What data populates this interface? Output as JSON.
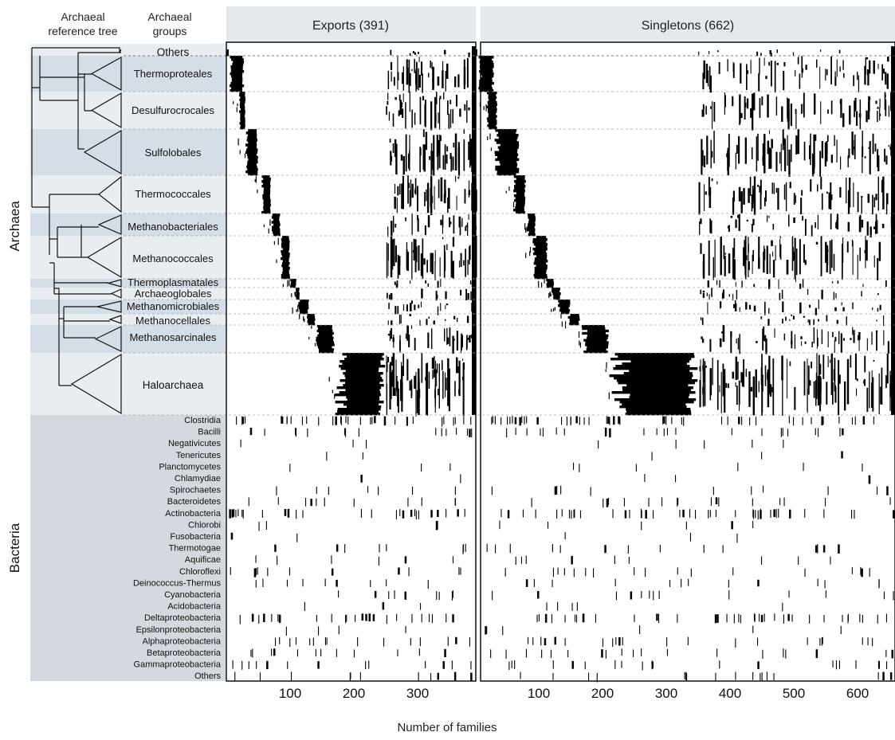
{
  "chart_data": {
    "type": "heatmap",
    "xlabel": "Number of families",
    "header_tree": "Archaeal reference tree",
    "header_groups": "Archaeal groups",
    "domains": [
      "Archaea",
      "Bacteria"
    ],
    "panels": [
      {
        "id": "exports",
        "title": "Exports (391)",
        "total": 391,
        "ticks": [
          100,
          200,
          300
        ]
      },
      {
        "id": "singletons",
        "title": "Singletons (662)",
        "total": 662,
        "ticks": [
          100,
          200,
          300,
          400,
          500,
          600
        ]
      }
    ],
    "archaeal_groups": [
      {
        "name": "Others",
        "block_exports": [
          0,
          4
        ],
        "block_singletons": [
          0,
          4
        ]
      },
      {
        "name": "Thermoproteales",
        "block_exports": [
          5,
          28
        ],
        "block_singletons": [
          5,
          30
        ]
      },
      {
        "name": "Desulfurocrocales",
        "block_exports": [
          20,
          30
        ],
        "block_singletons": [
          18,
          35
        ]
      },
      {
        "name": "Sulfolobales",
        "block_exports": [
          30,
          50
        ],
        "block_singletons": [
          30,
          70
        ]
      },
      {
        "name": "Thermococcales",
        "block_exports": [
          55,
          70
        ],
        "block_singletons": [
          60,
          80
        ]
      },
      {
        "name": "Methanobacteriales",
        "block_exports": [
          70,
          85
        ],
        "block_singletons": [
          82,
          95
        ]
      },
      {
        "name": "Methanococcales",
        "block_exports": [
          85,
          100
        ],
        "block_singletons": [
          90,
          115
        ]
      },
      {
        "name": "Thermoplasmatales",
        "block_exports": [
          100,
          110
        ],
        "block_singletons": [
          110,
          125
        ]
      },
      {
        "name": "Archaeoglobales",
        "block_exports": [
          108,
          115
        ],
        "block_singletons": [
          120,
          135
        ]
      },
      {
        "name": "Methanomicrobiales",
        "block_exports": [
          112,
          130
        ],
        "block_singletons": [
          130,
          150
        ]
      },
      {
        "name": "Methanocellales",
        "block_exports": [
          125,
          140
        ],
        "block_singletons": [
          145,
          165
        ]
      },
      {
        "name": "Methanosarcinales",
        "block_exports": [
          140,
          170
        ],
        "block_singletons": [
          165,
          210
        ]
      },
      {
        "name": "Haloarchaea",
        "block_exports": [
          170,
          250
        ],
        "block_singletons": [
          210,
          350
        ]
      }
    ],
    "bacterial_groups": [
      "Clostridia",
      "Bacilli",
      "Negativicutes",
      "Tenericutes",
      "Planctomycetes",
      "Chlamydiae",
      "Spirochaetes",
      "Bacteroidetes",
      "Actinobacteria",
      "Chlorobi",
      "Fusobacteria",
      "Thermotogae",
      "Aquificae",
      "Chloroflexi",
      "Deinococcus-Thermus",
      "Cyanobacteria",
      "Acidobacteria",
      "Deltaproteobacteria",
      "Epsilonproteobacteria",
      "Alphaproteobacteria",
      "Betaproteobacteria",
      "Gammaproteobacteria",
      "Others"
    ],
    "bacterial_density": [
      0.55,
      0.25,
      0.05,
      0.03,
      0.06,
      0.03,
      0.12,
      0.18,
      0.45,
      0.06,
      0.03,
      0.15,
      0.1,
      0.18,
      0.15,
      0.15,
      0.05,
      0.4,
      0.06,
      0.25,
      0.2,
      0.22,
      0.18
    ],
    "colors": {
      "archaea_band": "#e8edf1",
      "archaea_band_alt": "#d5dee6",
      "bacteria_band": "#d3d9de",
      "header": "#e4e9ed",
      "cell": "#000000"
    }
  }
}
